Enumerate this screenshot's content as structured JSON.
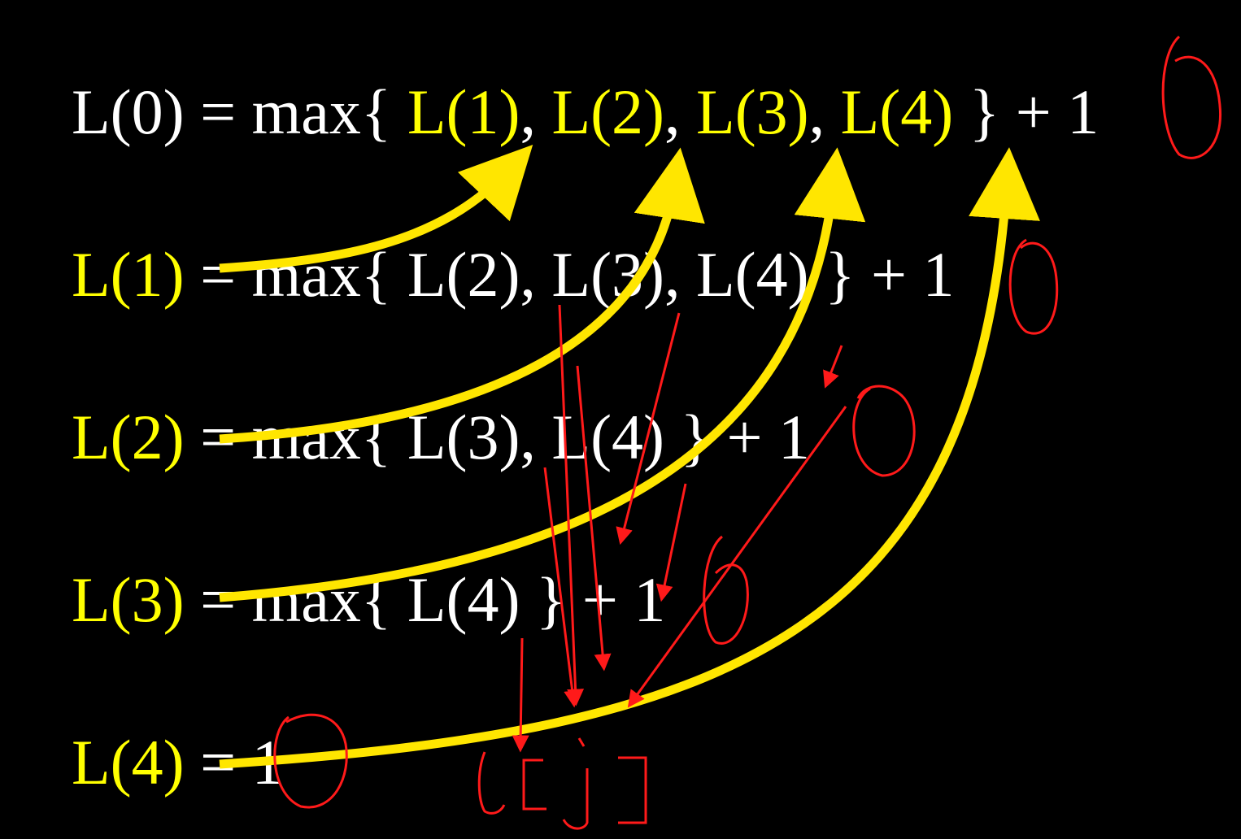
{
  "colors": {
    "background": "#000000",
    "text": "#ffffff",
    "highlight": "#ffff00",
    "dependency_arrow": "#ffe600",
    "annotation": "#ff1a1a"
  },
  "equations": [
    {
      "id": "L0",
      "tokens": [
        {
          "text": "L(0) = max{ ",
          "color": "white"
        },
        {
          "text": "L(1)",
          "color": "yellow"
        },
        {
          "text": ", ",
          "color": "white"
        },
        {
          "text": "L(2)",
          "color": "yellow"
        },
        {
          "text": ", ",
          "color": "white"
        },
        {
          "text": "L(3)",
          "color": "yellow"
        },
        {
          "text": ", ",
          "color": "white"
        },
        {
          "text": "L(4)",
          "color": "yellow"
        },
        {
          "text": " } + 1",
          "color": "white"
        }
      ]
    },
    {
      "id": "L1",
      "tokens": [
        {
          "text": "L(1)",
          "color": "yellow"
        },
        {
          "text": " = max{ L(2), L(3), L(4) } + 1",
          "color": "white"
        }
      ]
    },
    {
      "id": "L2",
      "tokens": [
        {
          "text": "L(2)",
          "color": "yellow"
        },
        {
          "text": " = max{ L(3), L(4) } + 1",
          "color": "white"
        }
      ]
    },
    {
      "id": "L3",
      "tokens": [
        {
          "text": "L(3)",
          "color": "yellow"
        },
        {
          "text": " = max{ L(4) } + 1",
          "color": "white"
        }
      ]
    },
    {
      "id": "L4",
      "tokens": [
        {
          "text": "L(4)",
          "color": "yellow"
        },
        {
          "text": " = 1",
          "color": "white"
        }
      ]
    }
  ],
  "handwriting": {
    "text": "L[j]",
    "style": "red handwritten brackets"
  }
}
